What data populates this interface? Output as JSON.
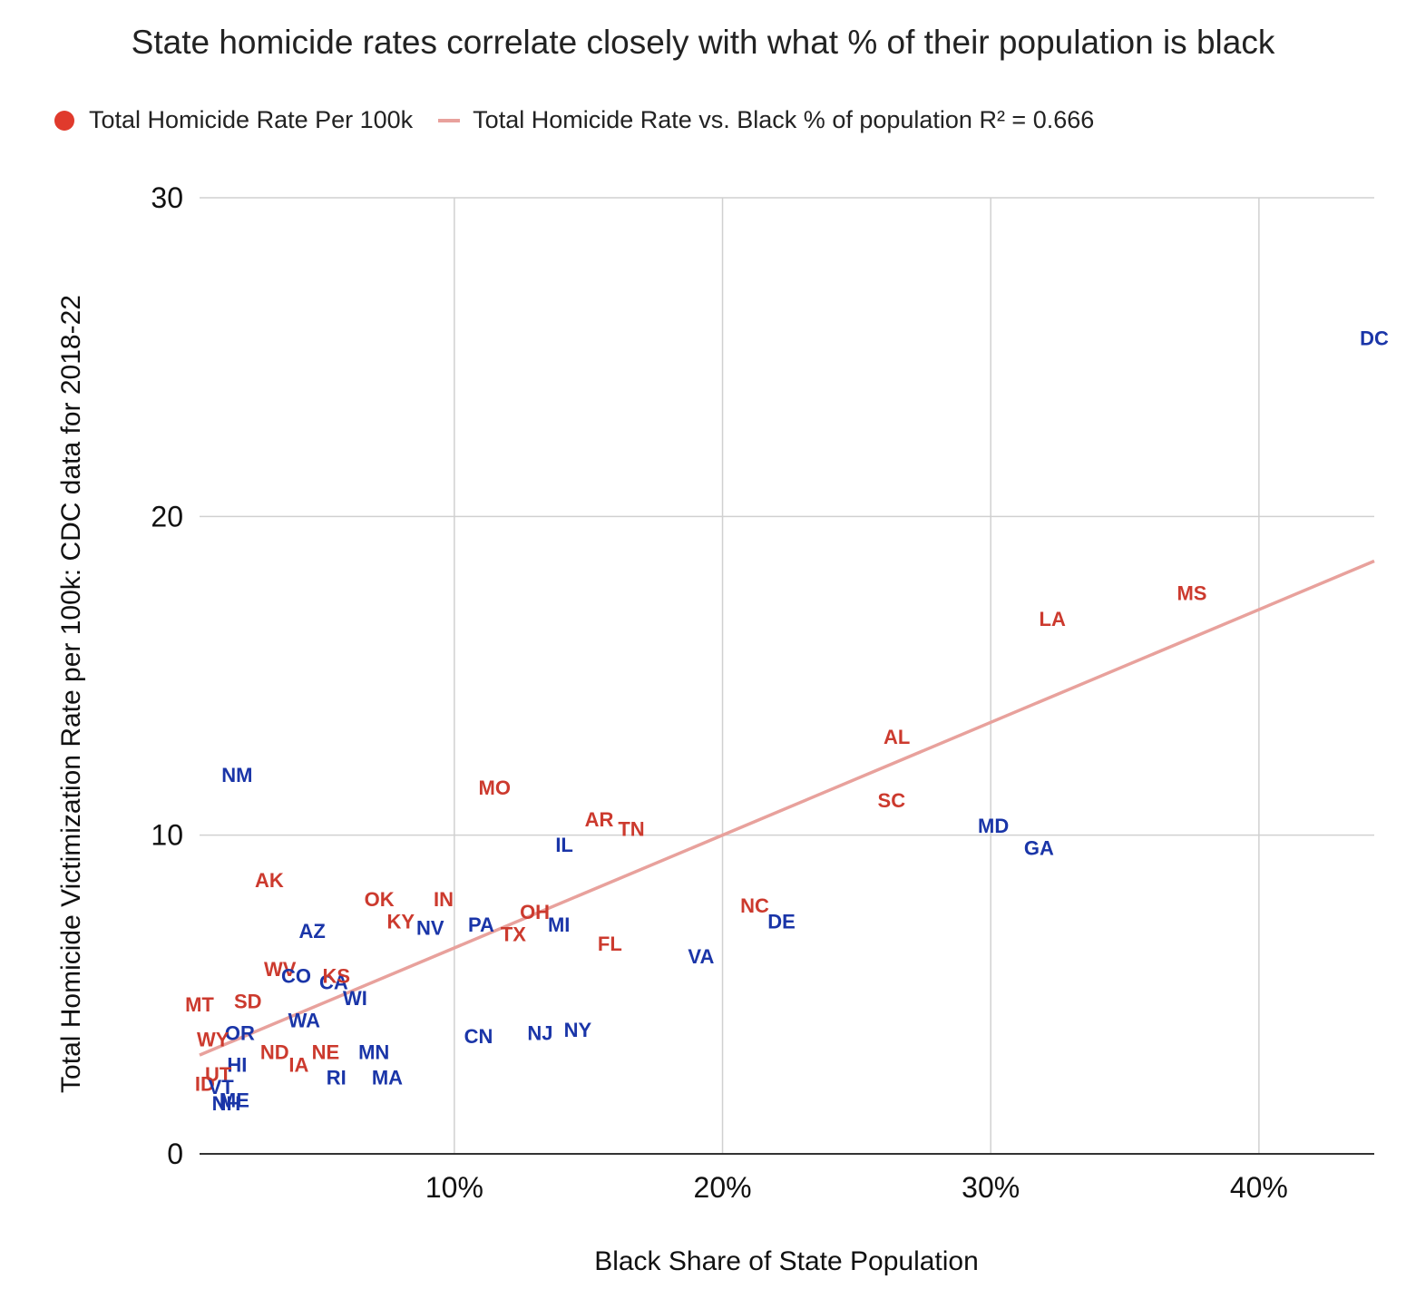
{
  "title": "State homicide rates correlate closely with what % of their population is black",
  "legend": {
    "series1": "Total Homicide Rate Per 100k",
    "series2": "Total Homicide Rate vs. Black % of population R² = 0.666"
  },
  "colors": {
    "red_states": "#cc3a2e",
    "blue_states": "#1a35a8",
    "legend_dot": "#e03a2c",
    "trendline": "#e8a19c",
    "grid": "#d0d0d0",
    "axis": "#333333"
  },
  "chart_data": {
    "type": "scatter",
    "title": "State homicide rates correlate closely with what % of their population is black",
    "xlabel": "Black Share of State Population",
    "ylabel": "Total Homicide Victimization Rate per 100k: CDC data for 2018-22",
    "xlim": [
      0.5,
      44.3
    ],
    "ylim": [
      0,
      30
    ],
    "x_ticks": [
      "10%",
      "20%",
      "30%",
      "40%"
    ],
    "x_tick_values": [
      10,
      20,
      30,
      40
    ],
    "y_ticks": [
      "0",
      "10",
      "20",
      "30"
    ],
    "y_tick_values": [
      0,
      10,
      20,
      30
    ],
    "grid": true,
    "legend_position": "top-left",
    "trendline": {
      "name": "Total Homicide Rate vs. Black % of population",
      "r_squared": "R² = 0.666",
      "start": [
        0.5,
        3.1
      ],
      "end": [
        44.3,
        18.6
      ]
    },
    "points": [
      {
        "label": "DC",
        "x": 44.3,
        "y": 25.6,
        "party": "blue"
      },
      {
        "label": "MS",
        "x": 37.5,
        "y": 17.6,
        "party": "red"
      },
      {
        "label": "LA",
        "x": 32.3,
        "y": 16.8,
        "party": "red"
      },
      {
        "label": "AL",
        "x": 26.5,
        "y": 13.1,
        "party": "red"
      },
      {
        "label": "SC",
        "x": 26.3,
        "y": 11.1,
        "party": "red"
      },
      {
        "label": "MD",
        "x": 30.1,
        "y": 10.3,
        "party": "blue"
      },
      {
        "label": "GA",
        "x": 31.8,
        "y": 9.6,
        "party": "blue"
      },
      {
        "label": "NM",
        "x": 1.9,
        "y": 11.9,
        "party": "blue"
      },
      {
        "label": "MO",
        "x": 11.5,
        "y": 11.5,
        "party": "red"
      },
      {
        "label": "AR",
        "x": 15.4,
        "y": 10.5,
        "party": "red"
      },
      {
        "label": "TN",
        "x": 16.6,
        "y": 10.2,
        "party": "red"
      },
      {
        "label": "IL",
        "x": 14.1,
        "y": 9.7,
        "party": "blue"
      },
      {
        "label": "AK",
        "x": 3.1,
        "y": 8.6,
        "party": "red"
      },
      {
        "label": "OK",
        "x": 7.2,
        "y": 8.0,
        "party": "red"
      },
      {
        "label": "IN",
        "x": 9.6,
        "y": 8.0,
        "party": "red"
      },
      {
        "label": "KY",
        "x": 8.0,
        "y": 7.3,
        "party": "red"
      },
      {
        "label": "NV",
        "x": 9.1,
        "y": 7.1,
        "party": "blue"
      },
      {
        "label": "PA",
        "x": 11.0,
        "y": 7.2,
        "party": "blue"
      },
      {
        "label": "OH",
        "x": 13.0,
        "y": 7.6,
        "party": "red"
      },
      {
        "label": "TX",
        "x": 12.2,
        "y": 6.9,
        "party": "red"
      },
      {
        "label": "MI",
        "x": 13.9,
        "y": 7.2,
        "party": "blue"
      },
      {
        "label": "NC",
        "x": 21.2,
        "y": 7.8,
        "party": "red"
      },
      {
        "label": "DE",
        "x": 22.2,
        "y": 7.3,
        "party": "blue"
      },
      {
        "label": "FL",
        "x": 15.8,
        "y": 6.6,
        "party": "red"
      },
      {
        "label": "VA",
        "x": 19.2,
        "y": 6.2,
        "party": "blue"
      },
      {
        "label": "AZ",
        "x": 4.7,
        "y": 7.0,
        "party": "blue"
      },
      {
        "label": "WV",
        "x": 3.5,
        "y": 5.8,
        "party": "red"
      },
      {
        "label": "CO",
        "x": 4.1,
        "y": 5.6,
        "party": "blue"
      },
      {
        "label": "CA",
        "x": 5.5,
        "y": 5.4,
        "party": "blue"
      },
      {
        "label": "KS",
        "x": 5.6,
        "y": 5.6,
        "party": "red"
      },
      {
        "label": "WI",
        "x": 6.3,
        "y": 4.9,
        "party": "blue"
      },
      {
        "label": "MT",
        "x": 0.5,
        "y": 4.7,
        "party": "red"
      },
      {
        "label": "SD",
        "x": 2.3,
        "y": 4.8,
        "party": "red"
      },
      {
        "label": "WA",
        "x": 4.4,
        "y": 4.2,
        "party": "blue"
      },
      {
        "label": "OR",
        "x": 2.0,
        "y": 3.8,
        "party": "blue"
      },
      {
        "label": "WY",
        "x": 1.0,
        "y": 3.6,
        "party": "red"
      },
      {
        "label": "CN",
        "x": 10.9,
        "y": 3.7,
        "party": "blue"
      },
      {
        "label": "NJ",
        "x": 13.2,
        "y": 3.8,
        "party": "blue"
      },
      {
        "label": "NY",
        "x": 14.6,
        "y": 3.9,
        "party": "blue"
      },
      {
        "label": "ND",
        "x": 3.3,
        "y": 3.2,
        "party": "red"
      },
      {
        "label": "IA",
        "x": 4.2,
        "y": 2.8,
        "party": "red"
      },
      {
        "label": "NE",
        "x": 5.2,
        "y": 3.2,
        "party": "red"
      },
      {
        "label": "MN",
        "x": 7.0,
        "y": 3.2,
        "party": "blue"
      },
      {
        "label": "HI",
        "x": 1.9,
        "y": 2.8,
        "party": "blue"
      },
      {
        "label": "UT",
        "x": 1.2,
        "y": 2.5,
        "party": "red"
      },
      {
        "label": "ID",
        "x": 0.7,
        "y": 2.2,
        "party": "red"
      },
      {
        "label": "VT",
        "x": 1.3,
        "y": 2.1,
        "party": "blue"
      },
      {
        "label": "ME",
        "x": 1.8,
        "y": 1.7,
        "party": "blue"
      },
      {
        "label": "NH",
        "x": 1.5,
        "y": 1.6,
        "party": "blue"
      },
      {
        "label": "RI",
        "x": 5.6,
        "y": 2.4,
        "party": "blue"
      },
      {
        "label": "MA",
        "x": 7.5,
        "y": 2.4,
        "party": "blue"
      }
    ]
  }
}
